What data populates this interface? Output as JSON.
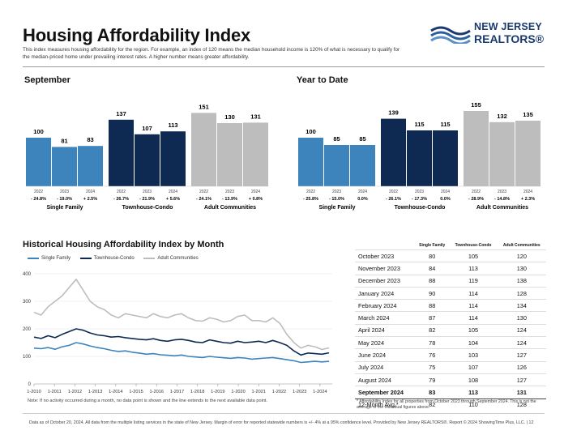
{
  "header": {
    "title": "Housing Affordability Index",
    "subtitle": "This index measures housing affordability for the region. For example, an index of 120 means the median household income is 120% of what is necessary to qualify for the median-priced home under prevailing interest rates. A higher number means greater affordability.",
    "logo_line1": "NEW JERSEY",
    "logo_line2": "REALTORS®"
  },
  "colors": {
    "single_family": "#3d84bc",
    "townhouse": "#0e2a52",
    "adult": "#bdbdbd"
  },
  "chart_data": [
    {
      "type": "bar",
      "title": "September",
      "groups": [
        "Single Family",
        "Townhouse-Condo",
        "Adult Communities"
      ],
      "years": [
        "2022",
        "2023",
        "2024"
      ],
      "values": [
        [
          100,
          81,
          83
        ],
        [
          137,
          107,
          113
        ],
        [
          151,
          130,
          131
        ]
      ],
      "changes": [
        [
          "- 24.8%",
          "- 19.0%",
          "+ 2.5%"
        ],
        [
          "- 26.7%",
          "- 21.9%",
          "+ 5.6%"
        ],
        [
          "- 24.1%",
          "- 13.9%",
          "+ 0.8%"
        ]
      ]
    },
    {
      "type": "bar",
      "title": "Year to Date",
      "groups": [
        "Single Family",
        "Townhouse-Condo",
        "Adult Communities"
      ],
      "years": [
        "2022",
        "2023",
        "2024"
      ],
      "values": [
        [
          100,
          85,
          85
        ],
        [
          139,
          115,
          115
        ],
        [
          155,
          132,
          135
        ]
      ],
      "changes": [
        [
          "- 25.8%",
          "- 15.0%",
          "0.0%"
        ],
        [
          "- 26.1%",
          "- 17.3%",
          "0.0%"
        ],
        [
          "- 28.9%",
          "- 14.8%",
          "+ 2.3%"
        ]
      ]
    },
    {
      "type": "line",
      "title": "Historical Housing Affordability Index by Month",
      "ylim": [
        0,
        400
      ],
      "yticks": [
        0,
        100,
        200,
        300,
        400
      ],
      "xticks": [
        "1-2010",
        "1-2011",
        "1-2012",
        "1-2013",
        "1-2014",
        "1-2015",
        "1-2016",
        "1-2017",
        "1-2018",
        "1-2019",
        "1-2020",
        "1-2021",
        "1-2022",
        "1-2023",
        "1-2024"
      ],
      "series": [
        {
          "name": "Single Family",
          "values": [
            130,
            128,
            132,
            126,
            135,
            140,
            150,
            145,
            138,
            132,
            128,
            122,
            118,
            120,
            115,
            112,
            108,
            110,
            106,
            104,
            102,
            105,
            100,
            98,
            96,
            100,
            97,
            95,
            93,
            96,
            94,
            90,
            92,
            94,
            96,
            92,
            88,
            84,
            78,
            80,
            82,
            80,
            82
          ]
        },
        {
          "name": "Townhouse-Condo",
          "values": [
            170,
            165,
            175,
            168,
            180,
            190,
            200,
            195,
            185,
            178,
            175,
            170,
            172,
            168,
            165,
            162,
            160,
            164,
            158,
            155,
            160,
            162,
            158,
            152,
            150,
            160,
            155,
            150,
            148,
            155,
            150,
            152,
            155,
            150,
            158,
            150,
            140,
            120,
            105,
            112,
            110,
            108,
            113
          ]
        },
        {
          "name": "Adult Communities",
          "values": [
            260,
            250,
            280,
            300,
            320,
            350,
            380,
            340,
            300,
            280,
            270,
            250,
            240,
            255,
            250,
            245,
            240,
            255,
            245,
            240,
            250,
            255,
            240,
            230,
            228,
            240,
            235,
            225,
            230,
            245,
            250,
            230,
            230,
            225,
            240,
            220,
            180,
            150,
            130,
            140,
            135,
            125,
            131
          ]
        }
      ]
    }
  ],
  "legend": [
    "Single Family",
    "Townhouse-Condo",
    "Adult Communities"
  ],
  "hist_note": "Note: If no activity occurred during a month, no data point is shown and the line extends to the next available data point.",
  "table": {
    "headers": [
      "Single Family",
      "Townhouse-Condo",
      "Adult Communities"
    ],
    "rows": [
      [
        "October 2023",
        "80",
        "105",
        "120"
      ],
      [
        "November 2023",
        "84",
        "113",
        "130"
      ],
      [
        "December 2023",
        "88",
        "119",
        "138"
      ],
      [
        "January 2024",
        "90",
        "114",
        "128"
      ],
      [
        "February 2024",
        "88",
        "114",
        "134"
      ],
      [
        "March 2024",
        "87",
        "114",
        "130"
      ],
      [
        "April 2024",
        "82",
        "105",
        "124"
      ],
      [
        "May 2024",
        "78",
        "104",
        "124"
      ],
      [
        "June 2024",
        "76",
        "103",
        "127"
      ],
      [
        "July 2024",
        "75",
        "107",
        "126"
      ],
      [
        "August 2024",
        "79",
        "108",
        "127"
      ],
      [
        "September 2024",
        "83",
        "113",
        "131"
      ],
      [
        "12-Month Avg.*",
        "82",
        "110",
        "128"
      ]
    ],
    "note": "* Affordability Index for all properties from October 2023 through September 2024. This is not the average of the individual figures above."
  },
  "footer": "Data as of October 20, 2024. All data from the multiple listing services in the state of New Jersey. Margin of error for reported statewide numbers is +/- 4% at a 95% confidence level. Provided by New Jersey REALTORS®. Report © 2024 ShowingTime Plus, LLC. | 12"
}
